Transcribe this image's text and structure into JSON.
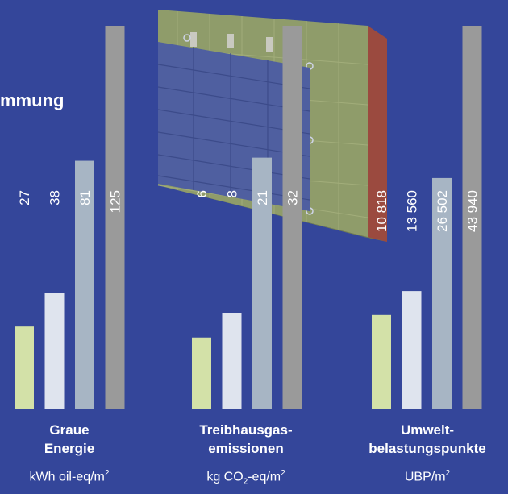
{
  "heading_fragment": "mmung",
  "colors": {
    "background": "#34469a",
    "bar1": "#d3e1a8",
    "bar2": "#dfe4ee",
    "bar3": "#a7b5c4",
    "bar4": "#9a9a9a"
  },
  "chart_data": [
    {
      "type": "bar",
      "title": "Graue Energie",
      "unit": "kWh oil-eq/m²",
      "values": [
        27,
        38,
        81,
        125
      ],
      "value_labels": [
        "27",
        "38",
        "81",
        "125"
      ],
      "ylim": [
        0,
        125
      ]
    },
    {
      "type": "bar",
      "title": "Treibhausgas-emissionen",
      "unit": "kg CO₂-eq/m²",
      "values": [
        6,
        8,
        21,
        32
      ],
      "value_labels": [
        "6",
        "8",
        "21",
        "32"
      ],
      "ylim": [
        0,
        32
      ]
    },
    {
      "type": "bar",
      "title": "Umwelt-belastungspunkte",
      "unit": "UBP/m²",
      "values": [
        10818,
        13560,
        26502,
        43940
      ],
      "value_labels": [
        "10 818",
        "13 560",
        "26 502",
        "43 940"
      ],
      "ylim": [
        0,
        43940
      ]
    }
  ],
  "groups": [
    {
      "title_line1": "Graue",
      "title_line2": "Energie",
      "unit_main": "kWh oil-eq/m",
      "unit_sup": "2"
    },
    {
      "title_line1": "Treibhausgas-",
      "title_line2": "emissionen",
      "unit_pre": "kg CO",
      "unit_sub": "2",
      "unit_post": "-eq/m",
      "unit_sup": "2"
    },
    {
      "title_line1": "Umwelt-",
      "title_line2": "belastungspunkte",
      "unit_main": "UBP/m",
      "unit_sup": "2"
    }
  ]
}
